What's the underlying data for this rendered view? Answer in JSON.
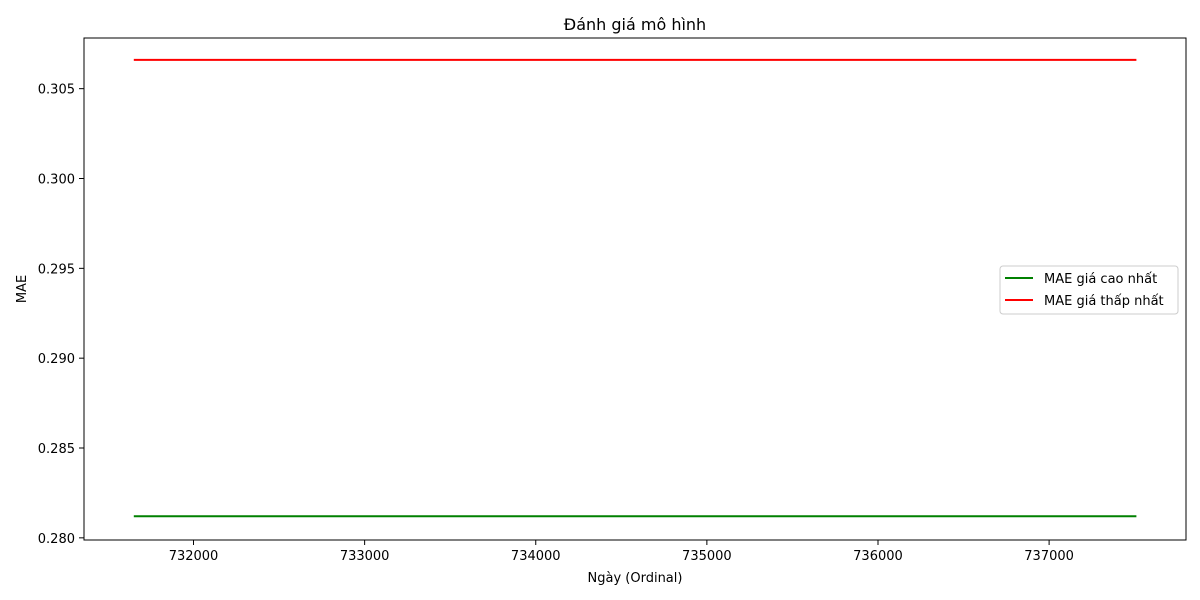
{
  "chart_data": {
    "type": "line",
    "title": "Đánh giá mô hình",
    "xlabel": "Ngày (Ordinal)",
    "ylabel": "MAE",
    "xlim": [
      731360,
      737800
    ],
    "ylim": [
      0.27988,
      0.30782
    ],
    "x_ticks": [
      732000,
      733000,
      734000,
      735000,
      736000,
      737000
    ],
    "y_ticks": [
      0.28,
      0.285,
      0.29,
      0.295,
      0.3,
      0.305
    ],
    "y_tick_labels": [
      "0.280",
      "0.285",
      "0.290",
      "0.295",
      "0.300",
      "0.305"
    ],
    "grid": false,
    "legend_position": "center-right",
    "series": [
      {
        "name": "MAE giá cao nhất",
        "color": "#008000",
        "x": [
          731651,
          737510
        ],
        "y": [
          0.2812,
          0.2812
        ]
      },
      {
        "name": "MAE giá thấp nhất",
        "color": "#ff0000",
        "x": [
          731651,
          737510
        ],
        "y": [
          0.3066,
          0.3066
        ]
      }
    ]
  }
}
